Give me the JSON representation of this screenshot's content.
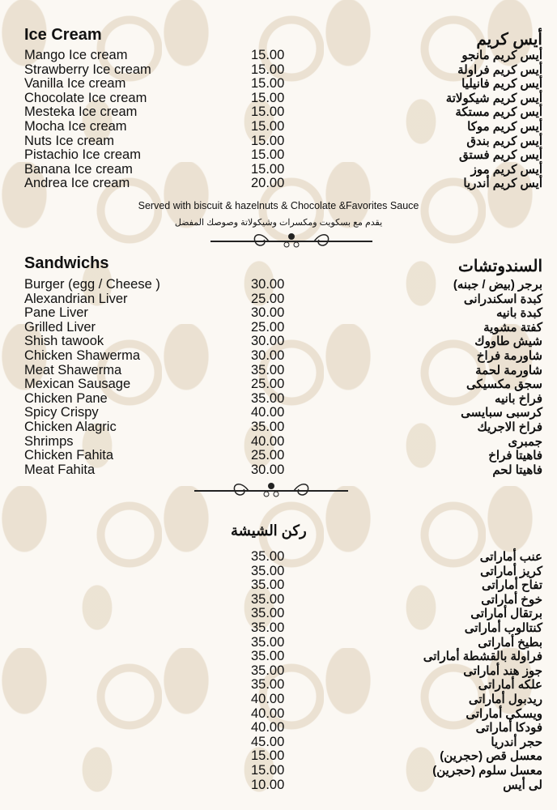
{
  "ice_cream": {
    "title_en": "Ice Cream",
    "title_ar": "أيس كريم",
    "items": [
      {
        "en": "Mango Ice cream",
        "price": "15.00",
        "ar": "أيس كريم مانجو"
      },
      {
        "en": "Strawberry Ice cream",
        "price": "15.00",
        "ar": "أيس كريم فراولة"
      },
      {
        "en": "Vanilla Ice cream",
        "price": "15.00",
        "ar": "أيس كريم فانيليا"
      },
      {
        "en": "Chocolate Ice cream",
        "price": "15.00",
        "ar": "أيس كريم شيكولاتة"
      },
      {
        "en": "Mesteka Ice cream",
        "price": "15.00",
        "ar": "أيس كريم مستكة"
      },
      {
        "en": "Mocha Ice cream",
        "price": "15.00",
        "ar": "أيس كريم موكا"
      },
      {
        "en": "Nuts Ice cream",
        "price": "15.00",
        "ar": "أيس كريم بندق"
      },
      {
        "en": "Pistachio Ice cream",
        "price": "15.00",
        "ar": "أيس كريم فستق"
      },
      {
        "en": "Banana Ice cream",
        "price": "15.00",
        "ar": "أيس كريم موز"
      },
      {
        "en": "Andrea Ice cream",
        "price": "20.00",
        "ar": "أيس كريم أندريا"
      }
    ],
    "note_en": "Served with biscuit & hazelnuts & Chocolate &Favorites Sauce",
    "note_ar": "يقدم مع بسكويت ومكسرات وشيكولاتة وصوصك المفضل"
  },
  "sandwiches": {
    "title_en": "Sandwichs",
    "title_ar": "السندوتشات",
    "items": [
      {
        "en": "Burger (egg / Cheese )",
        "price": "30.00",
        "ar": "برجر (بيض / جبنه)"
      },
      {
        "en": "Alexandrian Liver",
        "price": "25.00",
        "ar": "كبدة اسكندرانى"
      },
      {
        "en": "Pane Liver",
        "price": "30.00",
        "ar": "كبدة بانيه"
      },
      {
        "en": "Grilled Liver",
        "price": "25.00",
        "ar": "كفتة مشوية"
      },
      {
        "en": "Shish tawook",
        "price": "30.00",
        "ar": "شيش طاووك"
      },
      {
        "en": "Chicken Shawerma",
        "price": "30.00",
        "ar": "شاورمة فراخ"
      },
      {
        "en": "Meat Shawerma",
        "price": "35.00",
        "ar": "شاورمة لحمة"
      },
      {
        "en": "Mexican Sausage",
        "price": "25.00",
        "ar": "سجق مكسيكى"
      },
      {
        "en": "Chicken Pane",
        "price": "35.00",
        "ar": "فراخ بانيه"
      },
      {
        "en": "Spicy Crispy",
        "price": "40.00",
        "ar": "كرسبى سبايسى"
      },
      {
        "en": "Chicken Alagric",
        "price": "35.00",
        "ar": "فراخ الاجريك"
      },
      {
        "en": "Shrimps",
        "price": "40.00",
        "ar": "جمبرى"
      },
      {
        "en": "Chicken Fahita",
        "price": "25.00",
        "ar": "فاهيتا فراخ"
      },
      {
        "en": "Meat Fahita",
        "price": "30.00",
        "ar": "فاهيتا لحم"
      }
    ]
  },
  "shisha": {
    "title_ar": "ركن الشيشة",
    "items": [
      {
        "price": "35.00",
        "ar": "عنب أماراتى"
      },
      {
        "price": "35.00",
        "ar": "كريز أماراتى"
      },
      {
        "price": "35.00",
        "ar": "تفاح أماراتى"
      },
      {
        "price": "35.00",
        "ar": "خوخ أماراتى"
      },
      {
        "price": "35.00",
        "ar": "برتقال أماراتى"
      },
      {
        "price": "35.00",
        "ar": "كنتالوب أماراتى"
      },
      {
        "price": "35.00",
        "ar": "بطيخ أماراتى"
      },
      {
        "price": "35.00",
        "ar": "فراولة بالقشطة أماراتى"
      },
      {
        "price": "35.00",
        "ar": "جوز هند أماراتى"
      },
      {
        "price": "35.00",
        "ar": "علكه أماراتى"
      },
      {
        "price": "40.00",
        "ar": "ريدبول أماراتى"
      },
      {
        "price": "40.00",
        "ar": "ويسكى أماراتى"
      },
      {
        "price": "40.00",
        "ar": "فودكا أماراتى"
      },
      {
        "price": "45.00",
        "ar": "حجر أندريا"
      },
      {
        "price": "15.00",
        "ar": "معسل قص (حجرين)"
      },
      {
        "price": "15.00",
        "ar": "معسل سلوم (حجرين)"
      },
      {
        "price": "10.00",
        "ar": "لى أيس"
      }
    ]
  }
}
